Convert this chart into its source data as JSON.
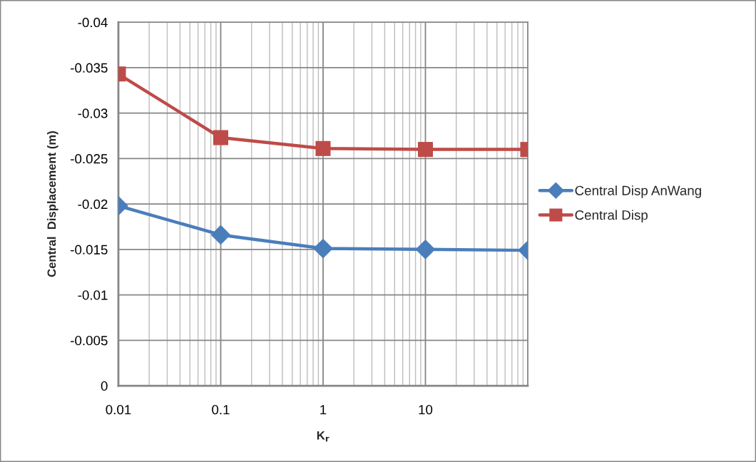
{
  "chart_data": {
    "type": "line",
    "xlabel": "K$_{r}$",
    "ylabel": "Central  Displacement (m)",
    "log": "x",
    "x": [
      0.01,
      0.1,
      1,
      10,
      100
    ],
    "xlim": [
      0.01,
      100
    ],
    "xticks": [
      0.01,
      0.1,
      1,
      10
    ],
    "ylim": [
      0,
      -0.04
    ],
    "yticks": [
      0,
      -0.005,
      -0.01,
      -0.015,
      -0.02,
      -0.025,
      -0.03,
      -0.035,
      -0.04
    ],
    "grid": true,
    "legend": "right",
    "series": [
      {
        "name": "Central Disp AnWang",
        "color": "#4a7ebb",
        "marker": "diamond",
        "values": [
          -0.0198,
          -0.0166,
          -0.0151,
          -0.015,
          -0.0149
        ]
      },
      {
        "name": "Central Disp",
        "color": "#be4b48",
        "marker": "square",
        "values": [
          -0.0343,
          -0.0273,
          -0.0261,
          -0.026,
          -0.026
        ]
      }
    ]
  }
}
